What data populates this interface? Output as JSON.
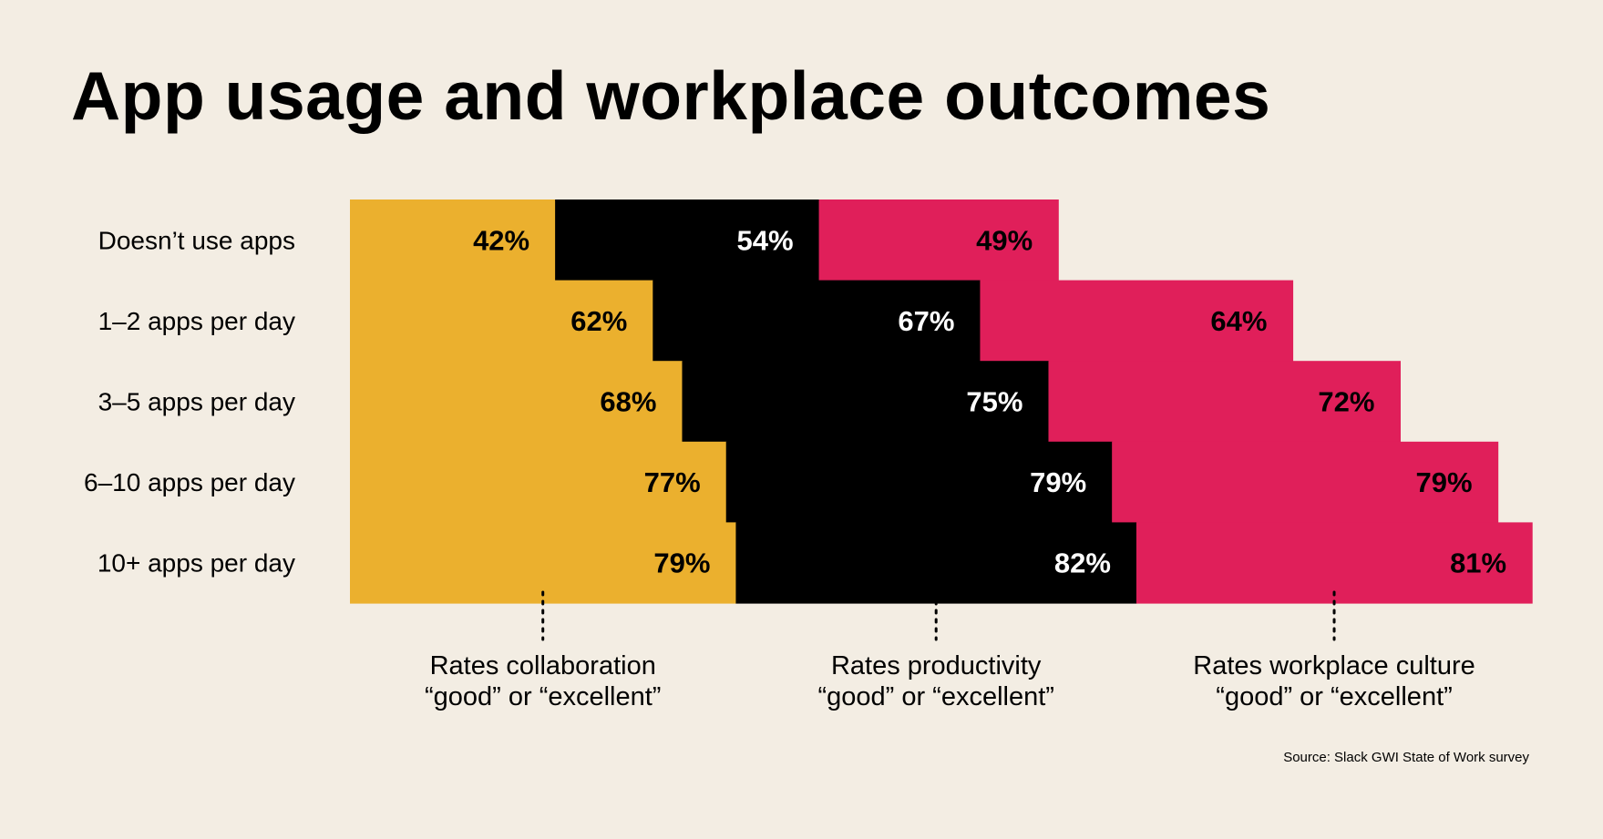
{
  "page": {
    "title": "App usage and workplace outcomes",
    "source": "Source: Slack GWI State of Work survey"
  },
  "colors": {
    "background": "#f3ede3",
    "collaboration": "#ebb02e",
    "productivity": "#000000",
    "culture": "#e01f5a",
    "label_on_dark": "#ffffff",
    "label_on_light": "#000000"
  },
  "chart_data": {
    "type": "bar",
    "orientation": "horizontal",
    "stacked": true,
    "title": "App usage and workplace outcomes",
    "categories": [
      "Doesn’t use apps",
      "1–2 apps per day",
      "3–5 apps per day",
      "6–10 apps per day",
      "10+ apps per day"
    ],
    "series": [
      {
        "name": "Rates collaboration “good” or “excellent”",
        "label_lines": [
          "Rates collaboration",
          "“good” or “excellent”"
        ],
        "values": [
          42,
          62,
          68,
          77,
          79
        ],
        "labels": [
          "42%",
          "62%",
          "68%",
          "77%",
          "79%"
        ],
        "color": "#ebb02e"
      },
      {
        "name": "Rates productivity “good” or “excellent”",
        "label_lines": [
          "Rates productivity",
          "“good” or “excellent”"
        ],
        "values": [
          54,
          67,
          75,
          79,
          82
        ],
        "labels": [
          "54%",
          "67%",
          "75%",
          "79%",
          "82%"
        ],
        "color": "#000000"
      },
      {
        "name": "Rates workplace culture “good” or “excellent”",
        "label_lines": [
          "Rates workplace culture",
          "“good” or “excellent”"
        ],
        "values": [
          49,
          64,
          72,
          79,
          81
        ],
        "labels": [
          "49%",
          "64%",
          "72%",
          "79%",
          "81%"
        ],
        "color": "#e01f5a"
      }
    ],
    "value_unit": "%",
    "axes_shown": false,
    "grid": false,
    "legend": "series labels below bars"
  }
}
